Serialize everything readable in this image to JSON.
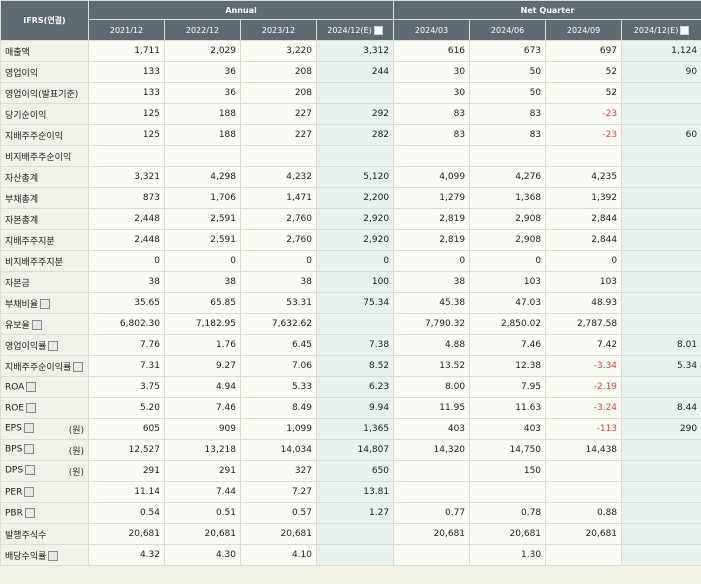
{
  "header": {
    "corner": "IFRS(연결)",
    "annual_label": "Annual",
    "netq_label": "Net Quarter",
    "annual_cols": [
      "2021/12",
      "2022/12",
      "2023/12",
      "2024/12(E)"
    ],
    "netq_cols": [
      "2024/03",
      "2024/06",
      "2024/09",
      "2024/12(E)"
    ]
  },
  "rows": [
    {
      "label": "매출액",
      "indent": 0,
      "unit": "",
      "has_icon": false,
      "values": [
        "1,711",
        "2,029",
        "3,220",
        "3,312",
        "616",
        "673",
        "697",
        "1,124"
      ]
    },
    {
      "label": "영업이익",
      "indent": 0,
      "unit": "",
      "has_icon": false,
      "values": [
        "133",
        "36",
        "208",
        "244",
        "30",
        "50",
        "52",
        "90"
      ]
    },
    {
      "label": "영업이익(발표기준)",
      "indent": 0,
      "unit": "",
      "has_icon": false,
      "values": [
        "133",
        "36",
        "208",
        "",
        "30",
        "50",
        "52",
        ""
      ]
    },
    {
      "label": "당기순이익",
      "indent": 0,
      "unit": "",
      "has_icon": false,
      "values": [
        "125",
        "188",
        "227",
        "292",
        "83",
        "83",
        "-23",
        ""
      ]
    },
    {
      "label": "지배주주순이익",
      "indent": 1,
      "unit": "",
      "has_icon": false,
      "values": [
        "125",
        "188",
        "227",
        "282",
        "83",
        "83",
        "-23",
        "60"
      ]
    },
    {
      "label": "비지배주주순이익",
      "indent": 2,
      "unit": "",
      "has_icon": false,
      "values": [
        "",
        "",
        "",
        "",
        "",
        "",
        "",
        ""
      ]
    },
    {
      "label": "자산총계",
      "indent": 0,
      "unit": "",
      "has_icon": false,
      "values": [
        "3,321",
        "4,298",
        "4,232",
        "5,120",
        "4,099",
        "4,276",
        "4,235",
        ""
      ]
    },
    {
      "label": "부채총계",
      "indent": 0,
      "unit": "",
      "has_icon": false,
      "values": [
        "873",
        "1,706",
        "1,471",
        "2,200",
        "1,279",
        "1,368",
        "1,392",
        ""
      ]
    },
    {
      "label": "자본총계",
      "indent": 0,
      "unit": "",
      "has_icon": false,
      "values": [
        "2,448",
        "2,591",
        "2,760",
        "2,920",
        "2,819",
        "2,908",
        "2,844",
        ""
      ]
    },
    {
      "label": "지배주주지분",
      "indent": 1,
      "unit": "",
      "has_icon": false,
      "values": [
        "2,448",
        "2,591",
        "2,760",
        "2,920",
        "2,819",
        "2,908",
        "2,844",
        ""
      ]
    },
    {
      "label": "비지배주주지분",
      "indent": 2,
      "unit": "",
      "has_icon": false,
      "values": [
        "0",
        "0",
        "0",
        "0",
        "0",
        "0",
        "0",
        ""
      ]
    },
    {
      "label": "자본금",
      "indent": 0,
      "unit": "",
      "has_icon": false,
      "values": [
        "38",
        "38",
        "38",
        "100",
        "38",
        "103",
        "103",
        ""
      ]
    },
    {
      "label": "부채비율",
      "indent": 0,
      "unit": "",
      "has_icon": true,
      "values": [
        "35.65",
        "65.85",
        "53.31",
        "75.34",
        "45.38",
        "47.03",
        "48.93",
        ""
      ]
    },
    {
      "label": "유보율",
      "indent": 0,
      "unit": "",
      "has_icon": true,
      "values": [
        "6,802.30",
        "7,182.95",
        "7,632.62",
        "",
        "7,790.32",
        "2,850.02",
        "2,787.58",
        ""
      ]
    },
    {
      "label": "영업이익률",
      "indent": 0,
      "unit": "",
      "has_icon": true,
      "values": [
        "7.76",
        "1.76",
        "6.45",
        "7.38",
        "4.88",
        "7.46",
        "7.42",
        "8.01"
      ]
    },
    {
      "label": "지배주주순이익률",
      "indent": 0,
      "unit": "",
      "has_icon": true,
      "values": [
        "7.31",
        "9.27",
        "7.06",
        "8.52",
        "13.52",
        "12.38",
        "-3.34",
        "5.34"
      ]
    },
    {
      "label": "ROA",
      "indent": 0,
      "unit": "",
      "has_icon": true,
      "values": [
        "3.75",
        "4.94",
        "5.33",
        "6.23",
        "8.00",
        "7.95",
        "-2.19",
        ""
      ]
    },
    {
      "label": "ROE",
      "indent": 0,
      "unit": "",
      "has_icon": true,
      "values": [
        "5.20",
        "7.46",
        "8.49",
        "9.94",
        "11.95",
        "11.63",
        "-3.24",
        "8.44"
      ]
    },
    {
      "label": "EPS",
      "indent": 0,
      "unit": "(원)",
      "has_icon": true,
      "values": [
        "605",
        "909",
        "1,099",
        "1,365",
        "403",
        "403",
        "-113",
        "290"
      ]
    },
    {
      "label": "BPS",
      "indent": 0,
      "unit": "(원)",
      "has_icon": true,
      "values": [
        "12,527",
        "13,218",
        "14,034",
        "14,807",
        "14,320",
        "14,750",
        "14,438",
        ""
      ]
    },
    {
      "label": "DPS",
      "indent": 0,
      "unit": "(원)",
      "has_icon": true,
      "values": [
        "291",
        "291",
        "327",
        "650",
        "",
        "150",
        "",
        ""
      ]
    },
    {
      "label": "PER",
      "indent": 0,
      "unit": "",
      "has_icon": true,
      "values": [
        "11.14",
        "7.44",
        "7.27",
        "13.81",
        "",
        "",
        "",
        ""
      ]
    },
    {
      "label": "PBR",
      "indent": 0,
      "unit": "",
      "has_icon": true,
      "values": [
        "0.54",
        "0.51",
        "0.57",
        "1.27",
        "0.77",
        "0.78",
        "0.88",
        ""
      ]
    },
    {
      "label": "발행주식수",
      "indent": 0,
      "unit": "",
      "has_icon": false,
      "values": [
        "20,681",
        "20,681",
        "20,681",
        "",
        "20,681",
        "20,681",
        "20,681",
        ""
      ]
    },
    {
      "label": "배당수익률",
      "indent": 0,
      "unit": "",
      "has_icon": true,
      "values": [
        "4.32",
        "4.30",
        "4.10",
        "",
        "",
        "1.30",
        "",
        ""
      ]
    }
  ]
}
